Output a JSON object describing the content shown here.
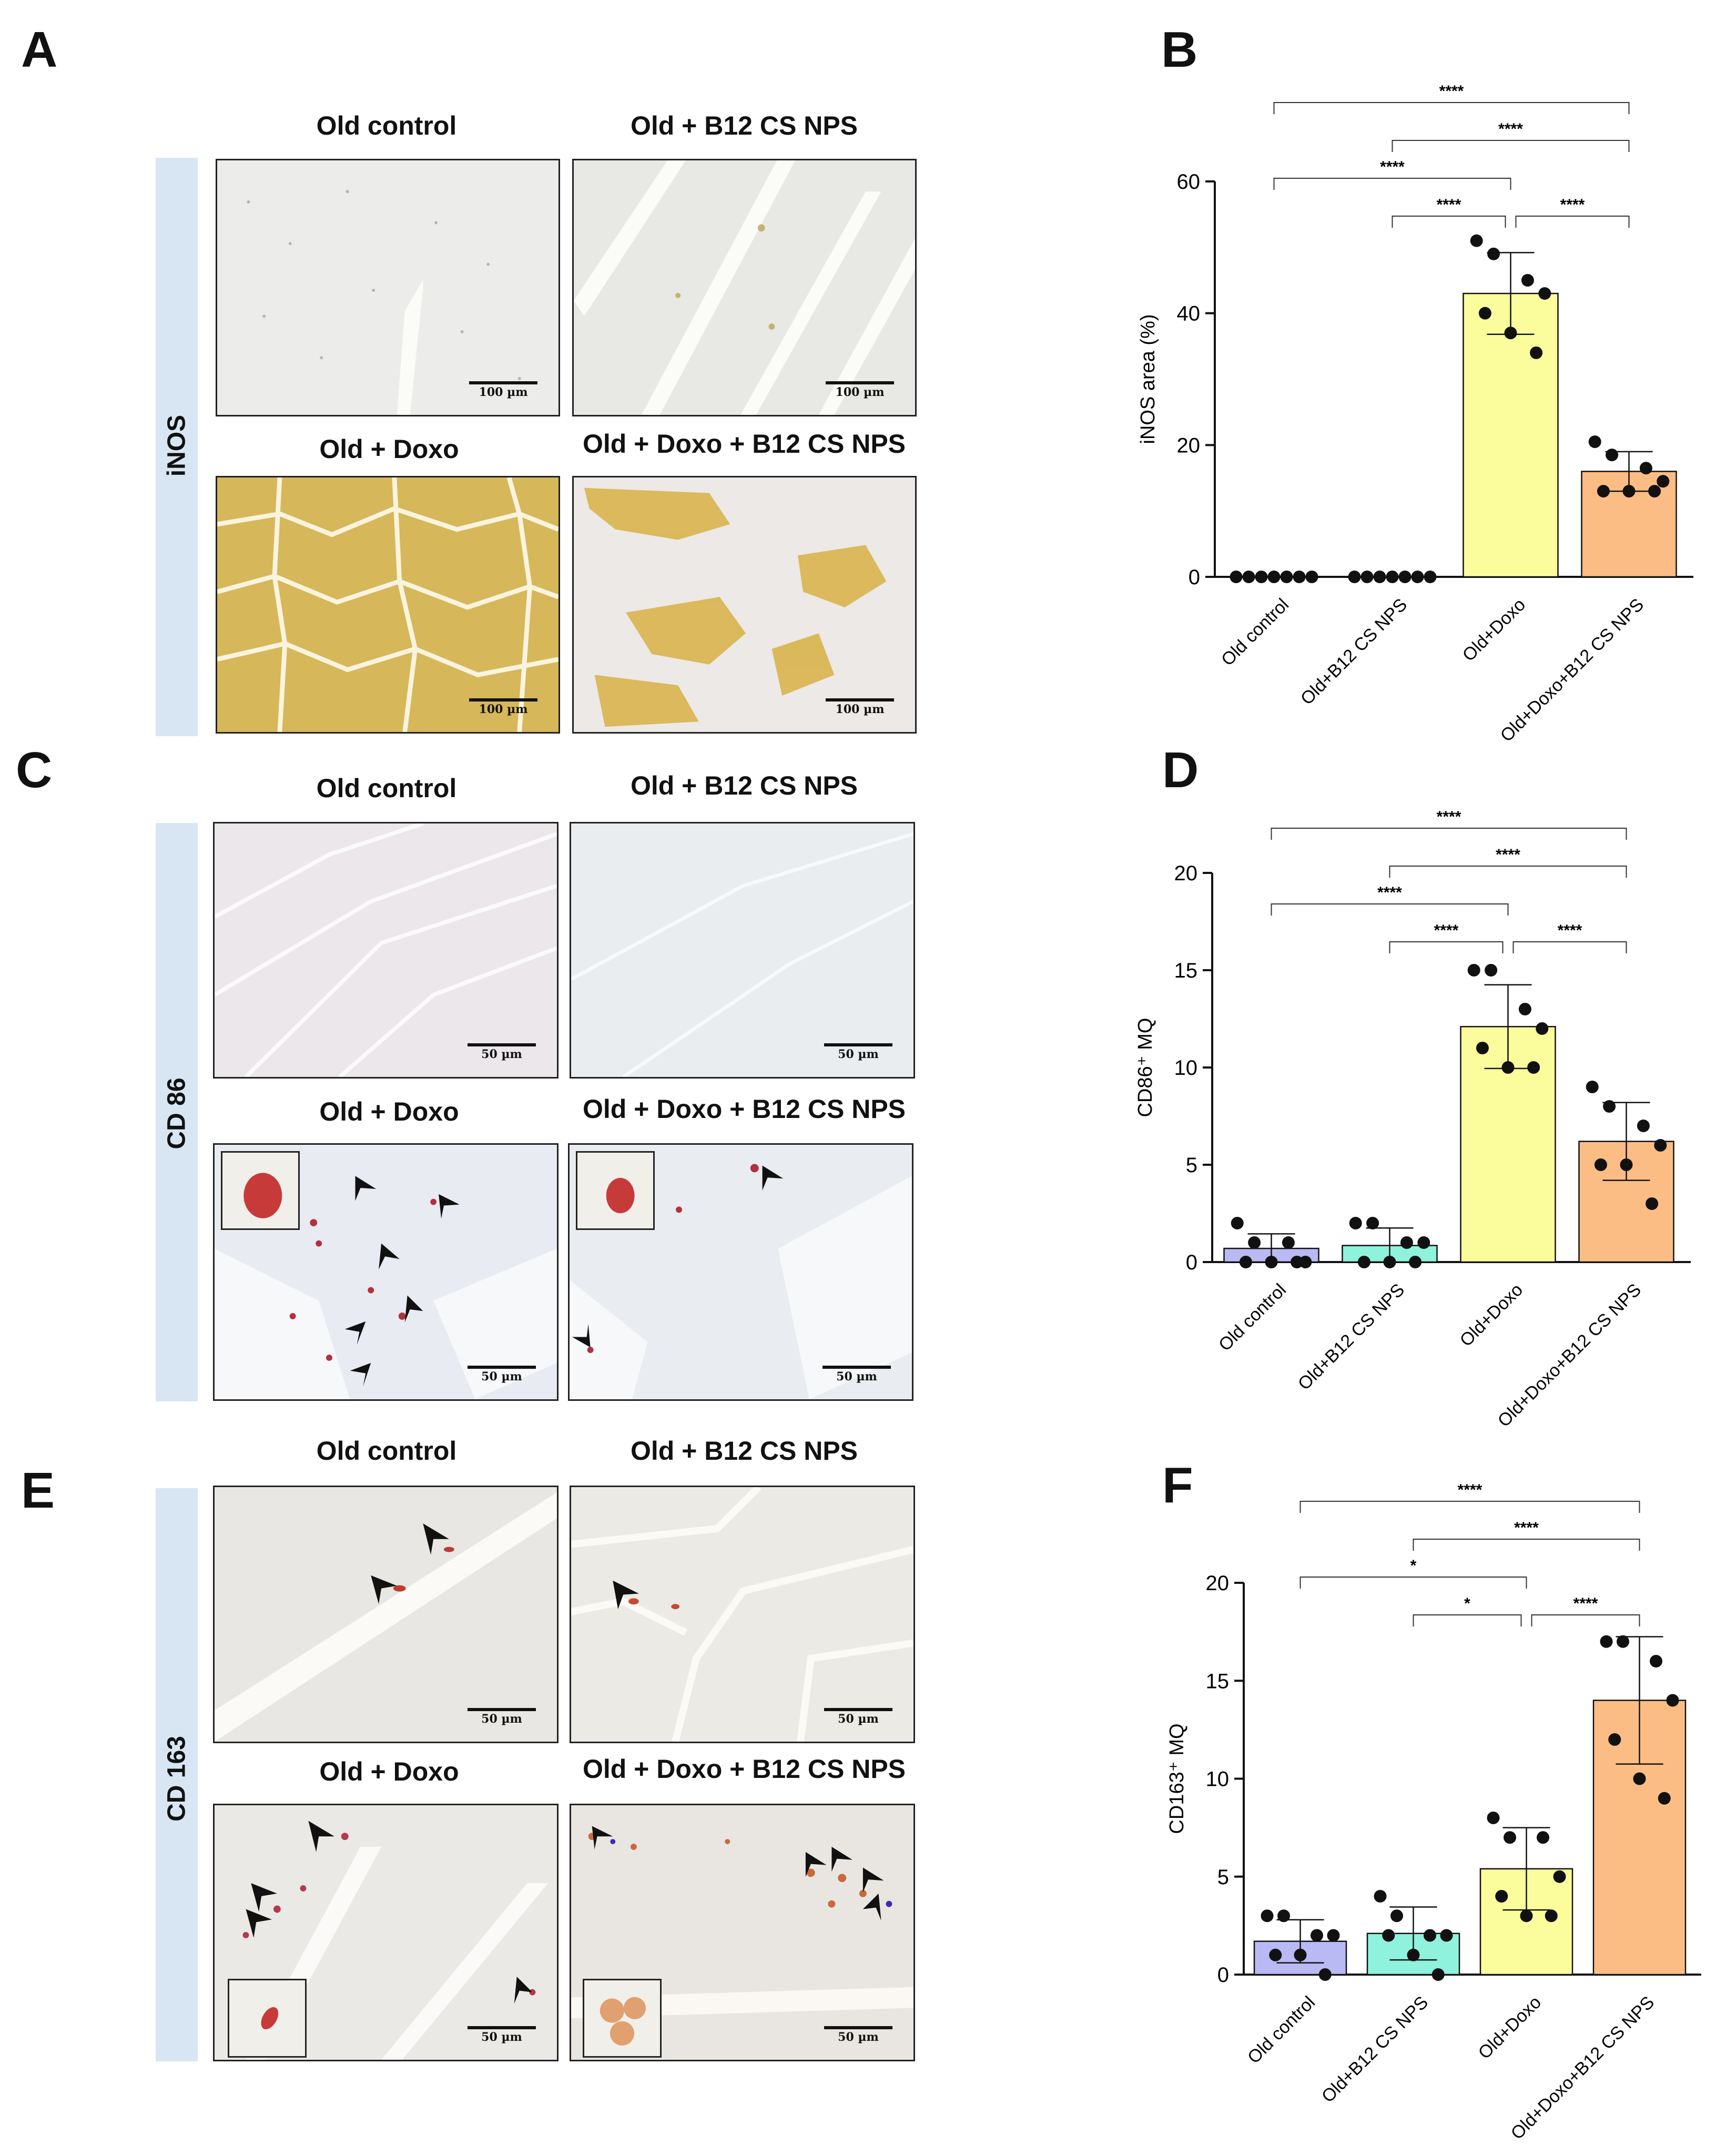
{
  "panels": {
    "A": "A",
    "B": "B",
    "C": "C",
    "D": "D",
    "E": "E",
    "F": "F"
  },
  "micrographs": {
    "A": {
      "stain": "iNOS",
      "tiles": [
        {
          "title": "Old control",
          "scale": "100 µm"
        },
        {
          "title": "Old + B12 CS NPS",
          "scale": "100 µm"
        },
        {
          "title": "Old + Doxo",
          "scale": "100 µm"
        },
        {
          "title": "Old + Doxo + B12 CS NPS",
          "scale": "100 µm"
        }
      ]
    },
    "C": {
      "stain": "CD 86",
      "tiles": [
        {
          "title": "Old control",
          "scale": "50 µm"
        },
        {
          "title": "Old + B12 CS NPS",
          "scale": "50 µm"
        },
        {
          "title": "Old + Doxo",
          "scale": "50 µm"
        },
        {
          "title": "Old + Doxo + B12 CS NPS",
          "scale": "50 µm"
        }
      ]
    },
    "E": {
      "stain": "CD 163",
      "tiles": [
        {
          "title": "Old control",
          "scale": "50 µm"
        },
        {
          "title": "Old + B12 CS NPS",
          "scale": "50 µm"
        },
        {
          "title": "Old + Doxo",
          "scale": "50 µm"
        },
        {
          "title": "Old + Doxo + B12 CS NPS",
          "scale": "50 µm"
        }
      ]
    }
  },
  "colors": {
    "old_control": "#b9b9f4",
    "old_b12": "#8ef2dc",
    "old_doxo": "#fbfd9c",
    "old_doxo_b12": "#fbbd83",
    "strip": "#d8e6f4"
  },
  "chart_data": [
    {
      "panel": "B",
      "type": "bar",
      "categories": [
        "Old control",
        "Old+B12 CS NPS",
        "Old+Doxo",
        "Old+Doxo+B12 CS NPS"
      ],
      "values": [
        0,
        0,
        43,
        16
      ],
      "sd": [
        0,
        0,
        6.2,
        3
      ],
      "points": [
        [
          0,
          0,
          0,
          0,
          0,
          0,
          0
        ],
        [
          0,
          0,
          0,
          0,
          0,
          0,
          0
        ],
        [
          51,
          49,
          45,
          43,
          40,
          37,
          34
        ],
        [
          20.5,
          18.5,
          16.5,
          14.5,
          13,
          13,
          13
        ]
      ],
      "ylabel": "iNOS area (%)",
      "ylim": [
        0,
        60
      ],
      "yticks": [
        0,
        20,
        40,
        60
      ],
      "significance": [
        {
          "from": 0,
          "to": 3,
          "label": "****"
        },
        {
          "from": 1,
          "to": 3,
          "label": "****"
        },
        {
          "from": 0,
          "to": 2,
          "label": "****"
        },
        {
          "from": 1,
          "to": 2,
          "label": "****"
        },
        {
          "from": 2,
          "to": 3,
          "label": "****"
        }
      ]
    },
    {
      "panel": "D",
      "type": "bar",
      "categories": [
        "Old control",
        "Old+B12 CS NPS",
        "Old+Doxo",
        "Old+Doxo+B12 CS NPS"
      ],
      "values": [
        0.7,
        0.85,
        12.1,
        6.2
      ],
      "sd": [
        0.75,
        0.9,
        2.15,
        2
      ],
      "points": [
        [
          2,
          1,
          1,
          0,
          0,
          0,
          0
        ],
        [
          2,
          2,
          1,
          1,
          0,
          0,
          0
        ],
        [
          15,
          15,
          13,
          12,
          11,
          10,
          10
        ],
        [
          9,
          8,
          7,
          6,
          5,
          5,
          3
        ]
      ],
      "ylabel": "CD86⁺ MQ",
      "ylim": [
        0,
        20
      ],
      "yticks": [
        0,
        5,
        10,
        15,
        20
      ],
      "significance": [
        {
          "from": 0,
          "to": 3,
          "label": "****"
        },
        {
          "from": 1,
          "to": 3,
          "label": "****"
        },
        {
          "from": 0,
          "to": 2,
          "label": "****"
        },
        {
          "from": 1,
          "to": 2,
          "label": "****"
        },
        {
          "from": 2,
          "to": 3,
          "label": "****"
        }
      ]
    },
    {
      "panel": "F",
      "type": "bar",
      "categories": [
        "Old control",
        "Old+B12 CS NPS",
        "Old+Doxo",
        "Old+Doxo+B12 CS NPS"
      ],
      "values": [
        1.7,
        2.1,
        5.4,
        14
      ],
      "sd": [
        1.1,
        1.35,
        2.1,
        3.25
      ],
      "points": [
        [
          3,
          3,
          2,
          2,
          1,
          1,
          0
        ],
        [
          4,
          3,
          2,
          2,
          2,
          1,
          0
        ],
        [
          8,
          7,
          7,
          5,
          4,
          3,
          3
        ],
        [
          17,
          17,
          16,
          14,
          12,
          10,
          9
        ]
      ],
      "ylabel": "CD163⁺ MQ",
      "ylim": [
        0,
        20
      ],
      "yticks": [
        0,
        5,
        10,
        15,
        20
      ],
      "significance": [
        {
          "from": 0,
          "to": 3,
          "label": "****"
        },
        {
          "from": 1,
          "to": 3,
          "label": "****"
        },
        {
          "from": 0,
          "to": 2,
          "label": "*"
        },
        {
          "from": 1,
          "to": 2,
          "label": "*"
        },
        {
          "from": 2,
          "to": 3,
          "label": "****"
        }
      ]
    }
  ]
}
